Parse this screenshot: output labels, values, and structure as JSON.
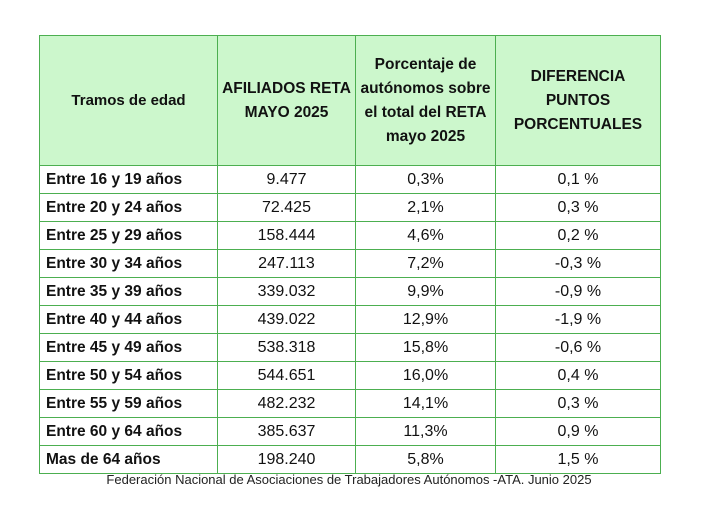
{
  "table": {
    "headers": [
      "Tramos de edad",
      "AFILIADOS RETA MAYO 2025",
      "Porcentaje de autónomos sobre el total del RETA mayo 2025",
      "DIFERENCIA PUNTOS PORCENTUALES"
    ],
    "rows": [
      [
        "Entre 16 y 19 años",
        "9.477",
        "0,3%",
        "0,1 %"
      ],
      [
        "Entre 20 y 24 años",
        "72.425",
        "2,1%",
        "0,3 %"
      ],
      [
        "Entre 25 y 29 años",
        "158.444",
        "4,6%",
        "0,2 %"
      ],
      [
        "Entre 30 y 34 años",
        "247.113",
        "7,2%",
        "-0,3 %"
      ],
      [
        "Entre 35 y 39 años",
        "339.032",
        "9,9%",
        "-0,9 %"
      ],
      [
        "Entre 40 y 44 años",
        "439.022",
        "12,9%",
        "-1,9 %"
      ],
      [
        "Entre 45 y 49 años",
        "538.318",
        "15,8%",
        "-0,6 %"
      ],
      [
        "Entre 50 y 54 años",
        "544.651",
        "16,0%",
        "0,4 %"
      ],
      [
        "Entre 55 y 59 años",
        "482.232",
        "14,1%",
        "0,3 %"
      ],
      [
        "Entre 60 y 64 años",
        "385.637",
        "11,3%",
        "0,9 %"
      ],
      [
        "Mas de 64 años",
        "198.240",
        "5,8%",
        "1,5 %"
      ]
    ]
  },
  "footer": "Federación Nacional de Asociaciones de Trabajadores Autónomos -ATA. Junio 2025"
}
